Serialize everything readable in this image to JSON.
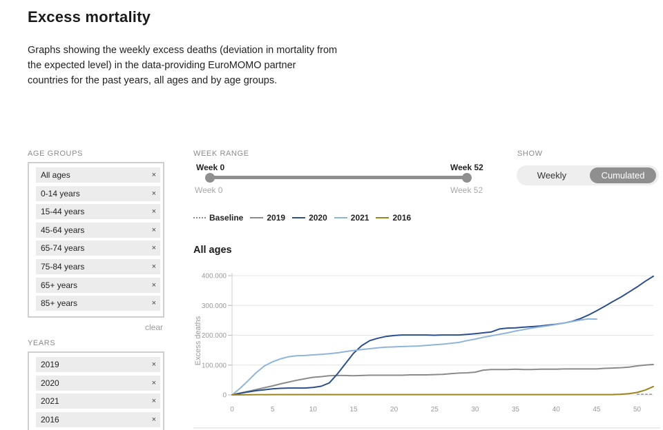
{
  "page": {
    "title": "Excess mortality",
    "description": "Graphs showing the weekly excess deaths (deviation in mortality from the expected level) in the data-providing EuroMOMO partner countries for the past years, all ages and by age groups."
  },
  "age_groups": {
    "label": "AGE GROUPS",
    "items": [
      "All ages",
      "0-14 years",
      "15-44 years",
      "45-64 years",
      "65-74 years",
      "75-84 years",
      "65+ years",
      "85+ years"
    ],
    "remove_symbol": "×",
    "clear_label": "clear"
  },
  "years": {
    "label": "YEARS",
    "items": [
      "2019",
      "2020",
      "2021",
      "2016"
    ],
    "remove_symbol": "×"
  },
  "week_range": {
    "label": "WEEK RANGE",
    "start_label": "Week 0",
    "end_label": "Week 52",
    "min_label": "Week 0",
    "max_label": "Week 52",
    "start_value": 0,
    "end_value": 52
  },
  "show": {
    "label": "SHOW",
    "options": [
      "Weekly",
      "Cumulated"
    ],
    "selected": "Cumulated"
  },
  "legend": [
    {
      "name": "Baseline",
      "color": "#888888",
      "style": "dotted"
    },
    {
      "name": "2019",
      "color": "#8a8a8a",
      "style": "solid"
    },
    {
      "name": "2020",
      "color": "#2b4e8e",
      "style": "solid"
    },
    {
      "name": "2021",
      "color": "#8fb4d9",
      "style": "solid"
    },
    {
      "name": "2016",
      "color": "#9a8420",
      "style": "solid"
    }
  ],
  "chart_data": {
    "type": "line",
    "title": "All ages",
    "xlabel": "",
    "ylabel": "Excess deaths",
    "xlim": [
      0,
      52
    ],
    "ylim": [
      0,
      400000
    ],
    "x_ticks": [
      0,
      5,
      10,
      15,
      20,
      25,
      30,
      35,
      40,
      45,
      50
    ],
    "y_ticks": [
      0,
      100000,
      200000,
      300000,
      400000
    ],
    "y_tick_labels": [
      "0",
      "100.000",
      "200.000",
      "300.000",
      "400.000"
    ],
    "series": [
      {
        "name": "Baseline",
        "color": "#888888",
        "dashed": true,
        "x": [
          50,
          52
        ],
        "y": [
          2000,
          2000
        ]
      },
      {
        "name": "2019",
        "color": "#8a8a8a",
        "x": [
          0,
          1,
          2,
          3,
          4,
          5,
          6,
          7,
          8,
          9,
          10,
          11,
          12,
          13,
          14,
          15,
          16,
          17,
          18,
          19,
          20,
          21,
          22,
          23,
          24,
          25,
          26,
          27,
          28,
          29,
          30,
          31,
          32,
          33,
          34,
          35,
          36,
          37,
          38,
          39,
          40,
          41,
          42,
          43,
          44,
          45,
          46,
          47,
          48,
          49,
          50,
          51,
          52
        ],
        "y": [
          0,
          6000,
          12000,
          18000,
          24000,
          30000,
          37000,
          43000,
          49000,
          54000,
          59000,
          61000,
          64000,
          65000,
          65000,
          64000,
          65000,
          66000,
          66000,
          66000,
          66000,
          66000,
          67000,
          67000,
          67000,
          68000,
          69000,
          71000,
          73000,
          74000,
          76000,
          83000,
          85000,
          85000,
          85000,
          86000,
          85000,
          85000,
          86000,
          86000,
          86000,
          87000,
          87000,
          87000,
          87000,
          87000,
          89000,
          90000,
          91000,
          93000,
          97000,
          100000,
          102000
        ]
      },
      {
        "name": "2020",
        "color": "#2b4e8e",
        "x": [
          0,
          1,
          2,
          3,
          4,
          5,
          6,
          7,
          8,
          9,
          10,
          11,
          12,
          13,
          14,
          15,
          16,
          17,
          18,
          19,
          20,
          21,
          22,
          23,
          24,
          25,
          26,
          27,
          28,
          29,
          30,
          31,
          32,
          33,
          34,
          35,
          36,
          37,
          38,
          39,
          40,
          41,
          42,
          43,
          44,
          45,
          46,
          47,
          48,
          49,
          50,
          51,
          52
        ],
        "y": [
          0,
          5000,
          10000,
          14000,
          17000,
          20000,
          22000,
          23000,
          23000,
          23000,
          25000,
          29000,
          40000,
          70000,
          105000,
          140000,
          165000,
          182000,
          190000,
          196000,
          199000,
          201000,
          201000,
          201000,
          201000,
          200000,
          201000,
          201000,
          201000,
          203000,
          205000,
          208000,
          211000,
          221000,
          224000,
          225000,
          227000,
          229000,
          231000,
          234000,
          237000,
          241000,
          247000,
          256000,
          268000,
          282000,
          297000,
          313000,
          328000,
          345000,
          362000,
          381000,
          398000
        ]
      },
      {
        "name": "2021",
        "color": "#8fb4d9",
        "x": [
          0,
          1,
          2,
          3,
          4,
          5,
          6,
          7,
          8,
          9,
          10,
          11,
          12,
          13,
          14,
          15,
          16,
          17,
          18,
          19,
          20,
          21,
          22,
          23,
          24,
          25,
          26,
          27,
          28,
          29,
          30,
          31,
          32,
          33,
          34,
          35,
          36,
          37,
          38,
          39,
          40,
          41,
          42,
          43,
          44,
          45
        ],
        "y": [
          0,
          22000,
          48000,
          75000,
          97000,
          111000,
          121000,
          128000,
          131000,
          132000,
          134000,
          136000,
          138000,
          141000,
          145000,
          149000,
          152000,
          155000,
          158000,
          160000,
          161000,
          162000,
          163000,
          164000,
          166000,
          168000,
          170000,
          173000,
          176000,
          182000,
          187000,
          193000,
          198000,
          203000,
          208000,
          214000,
          219000,
          224000,
          228000,
          232000,
          236000,
          241000,
          246000,
          251000,
          255000,
          254000
        ]
      },
      {
        "name": "2016",
        "color": "#9a8420",
        "x": [
          0,
          5,
          10,
          15,
          20,
          25,
          30,
          35,
          40,
          45,
          47,
          48,
          49,
          50,
          51,
          52
        ],
        "y": [
          0,
          1000,
          1000,
          1000,
          1000,
          1000,
          1000,
          1000,
          1000,
          1000,
          1000,
          2000,
          4000,
          8000,
          16000,
          28000
        ]
      }
    ]
  }
}
